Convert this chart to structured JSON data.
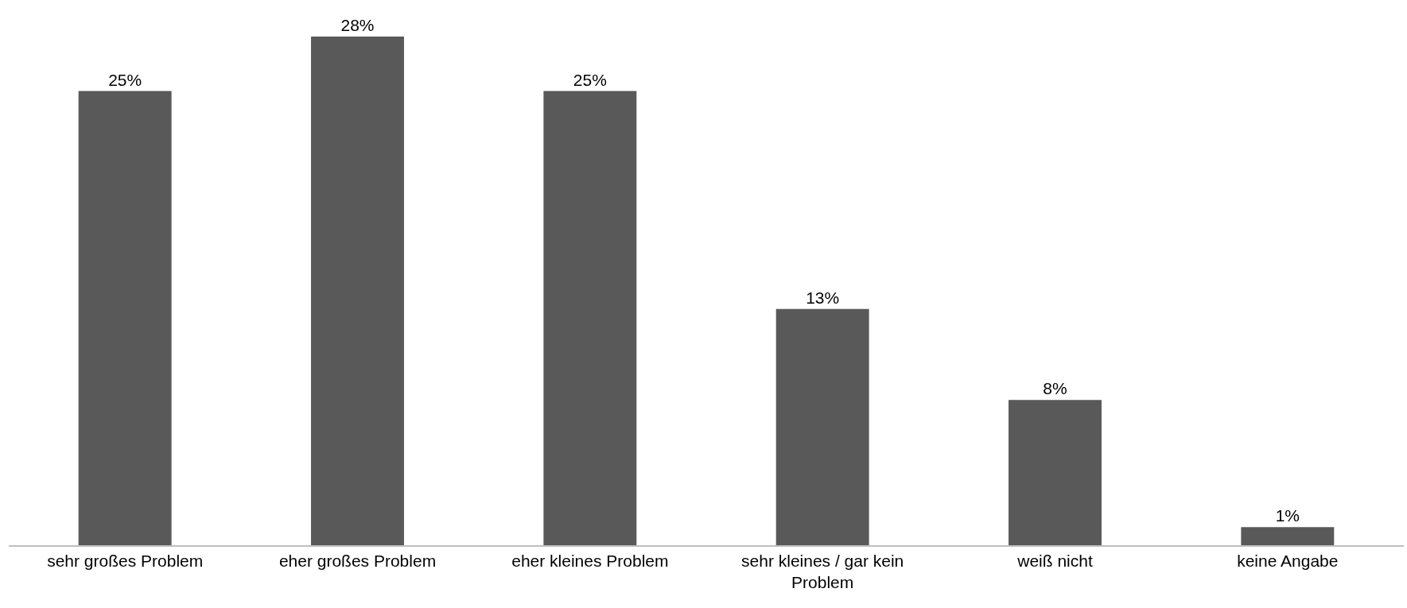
{
  "chart_data": {
    "type": "bar",
    "categories": [
      "sehr großes Problem",
      "eher großes Problem",
      "eher kleines Problem",
      "sehr kleines / gar kein Problem",
      "weiß nicht",
      "keine Angabe"
    ],
    "values": [
      25,
      28,
      25,
      13,
      8,
      1
    ],
    "value_labels": [
      "25%",
      "28%",
      "25%",
      "13%",
      "8%",
      "1%"
    ],
    "color": "#595959",
    "grid": false,
    "legend": false
  }
}
